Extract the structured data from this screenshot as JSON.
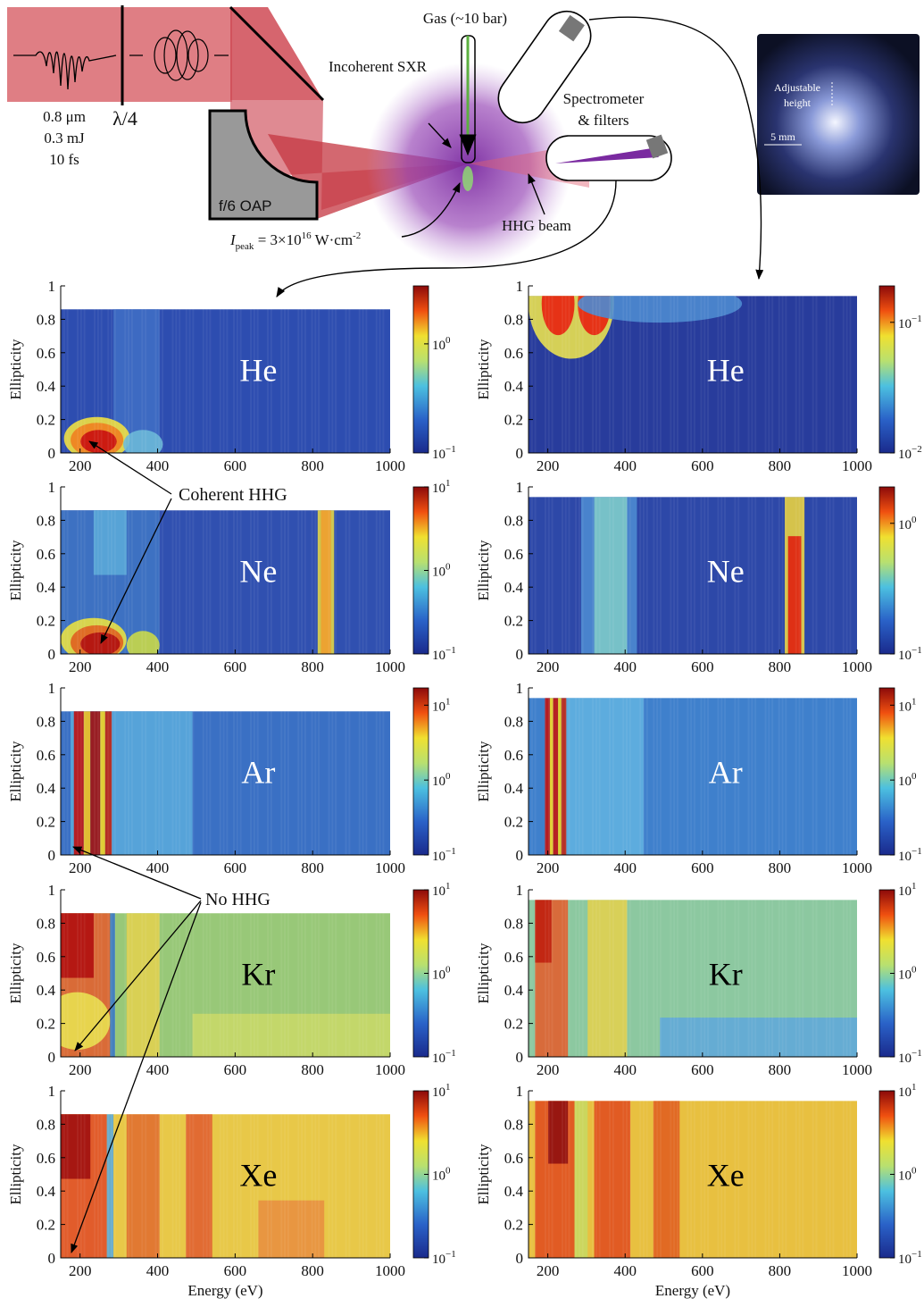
{
  "diagram": {
    "laser": [
      "0.8 μm",
      "0.3 mJ",
      "10 fs"
    ],
    "waveplate": "λ/4",
    "mirror": "f/6 OAP",
    "gas": "Gas (~10 bar)",
    "incoherent": "Incoherent SXR",
    "spectrometer": [
      "Spectrometer",
      "& filters"
    ],
    "hhg_beam": "HHG beam",
    "intensity": {
      "symbol": "I",
      "sub": "peak",
      "text": " = 3×10",
      "exp": "16",
      "unit": " W·cm",
      "unit_exp": "-2"
    },
    "photo": {
      "label": [
        "Adjustable",
        "height"
      ],
      "scale": "5 mm"
    }
  },
  "annotations": {
    "coherent": "Coherent HHG",
    "no_hhg": "No HHG"
  },
  "axes": {
    "y_label": "Ellipticity",
    "x_label": "Energy (eV)",
    "xlim": [
      150,
      1000
    ],
    "xticks": [
      200,
      400,
      600,
      800,
      1000
    ],
    "ylim": [
      0,
      1
    ],
    "yticks": [
      0,
      0.2,
      0.4,
      0.6,
      0.8,
      1
    ]
  },
  "columns": [
    [
      {
        "gas": "He",
        "data_ymax": 0.86,
        "clim": [
          0.1,
          3.4
        ],
        "cticks": [
          {
            "value": 0.1,
            "base": "10",
            "exp": "−1"
          },
          {
            "value": 1,
            "base": "10",
            "exp": "0"
          }
        ]
      },
      {
        "gas": "Ne",
        "data_ymax": 0.86,
        "clim": [
          0.1,
          10
        ],
        "cticks": [
          {
            "value": 0.1,
            "base": "10",
            "exp": "−1"
          },
          {
            "value": 1,
            "base": "10",
            "exp": "0"
          },
          {
            "value": 10,
            "base": "10",
            "exp": "1"
          }
        ]
      },
      {
        "gas": "Ar",
        "data_ymax": 0.86,
        "clim": [
          0.1,
          17
        ],
        "cticks": [
          {
            "value": 0.1,
            "base": "10",
            "exp": "−1"
          },
          {
            "value": 1,
            "base": "10",
            "exp": "0"
          },
          {
            "value": 10,
            "base": "10",
            "exp": "1"
          }
        ]
      },
      {
        "gas": "Kr",
        "data_ymax": 0.86,
        "clim": [
          0.1,
          10
        ],
        "cticks": [
          {
            "value": 0.1,
            "base": "10",
            "exp": "−1"
          },
          {
            "value": 1,
            "base": "10",
            "exp": "0"
          },
          {
            "value": 10,
            "base": "10",
            "exp": "1"
          }
        ]
      },
      {
        "gas": "Xe",
        "data_ymax": 0.86,
        "clim": [
          0.1,
          10
        ],
        "cticks": [
          {
            "value": 0.1,
            "base": "10",
            "exp": "−1"
          },
          {
            "value": 1,
            "base": "10",
            "exp": "0"
          },
          {
            "value": 10,
            "base": "10",
            "exp": "1"
          }
        ]
      }
    ],
    [
      {
        "gas": "He",
        "data_ymax": 0.94,
        "clim": [
          0.01,
          0.19
        ],
        "cticks": [
          {
            "value": 0.01,
            "base": "10",
            "exp": "−2"
          },
          {
            "value": 0.1,
            "base": "10",
            "exp": "−1"
          }
        ]
      },
      {
        "gas": "Ne",
        "data_ymax": 0.94,
        "clim": [
          0.1,
          1.9
        ],
        "cticks": [
          {
            "value": 0.1,
            "base": "10",
            "exp": "−1"
          },
          {
            "value": 1,
            "base": "10",
            "exp": "0"
          }
        ]
      },
      {
        "gas": "Ar",
        "data_ymax": 0.94,
        "clim": [
          0.1,
          17
        ],
        "cticks": [
          {
            "value": 0.1,
            "base": "10",
            "exp": "−1"
          },
          {
            "value": 1,
            "base": "10",
            "exp": "0"
          },
          {
            "value": 10,
            "base": "10",
            "exp": "1"
          }
        ]
      },
      {
        "gas": "Kr",
        "data_ymax": 0.94,
        "clim": [
          0.1,
          10
        ],
        "cticks": [
          {
            "value": 0.1,
            "base": "10",
            "exp": "−1"
          },
          {
            "value": 1,
            "base": "10",
            "exp": "0"
          },
          {
            "value": 10,
            "base": "10",
            "exp": "1"
          }
        ]
      },
      {
        "gas": "Xe",
        "data_ymax": 0.94,
        "clim": [
          0.1,
          10
        ],
        "cticks": [
          {
            "value": 0.1,
            "base": "10",
            "exp": "−1"
          },
          {
            "value": 1,
            "base": "10",
            "exp": "0"
          },
          {
            "value": 10,
            "base": "10",
            "exp": "1"
          }
        ]
      }
    ]
  ]
}
